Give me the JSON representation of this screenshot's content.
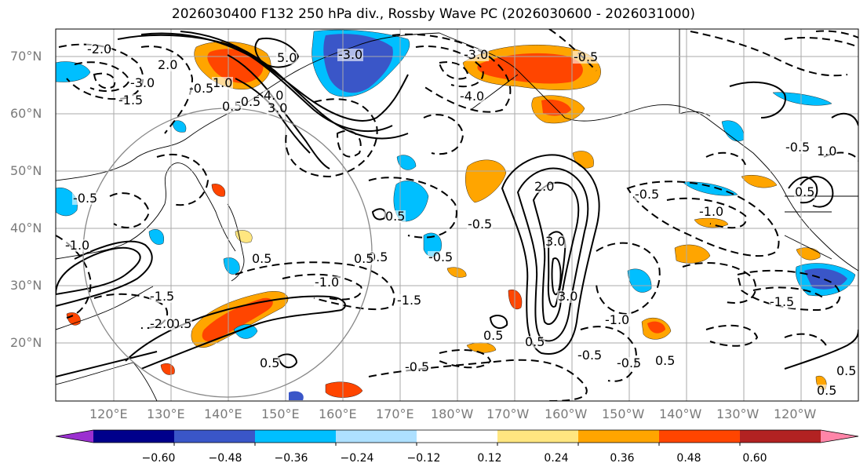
{
  "title": "2026030400 F132 250 hPa div., Rossby Wave PC (2026030600 - 2026031000)",
  "lat_labels": [
    "70°N",
    "60°N",
    "50°N",
    "40°N",
    "30°N",
    "20°N"
  ],
  "lon_labels": [
    "120°E",
    "130°E",
    "140°E",
    "150°E",
    "160°E",
    "170°E",
    "180°W",
    "170°W",
    "160°W",
    "150°W",
    "140°W",
    "130°W",
    "120°W"
  ],
  "colorbar": {
    "ticks": [
      "−0.60",
      "−0.48",
      "−0.36",
      "−0.24",
      "−0.12",
      "0.12",
      "0.24",
      "0.36",
      "0.48",
      "0.60"
    ],
    "colors": [
      "#9b30d0",
      "#00008b",
      "#3a56c8",
      "#00bfff",
      "#aee0ff",
      "#ffffff",
      "#ffe680",
      "#ffa500",
      "#ff4500",
      "#b22222",
      "#ff85a8"
    ]
  },
  "contour_labels": {
    "positive": [
      "5.0",
      "4.0",
      "3.0",
      "2.0",
      "1.0",
      "0.5",
      "0.5",
      "0.5",
      "0.5",
      "0.5",
      "0.5",
      "0.5",
      "0.5",
      "0.5",
      "2.0",
      "3.0",
      "3.0",
      "0.5",
      "0.5",
      "1.0",
      "0.5",
      "0.5"
    ],
    "negative": [
      "-2.0",
      "-3.0",
      "-1.5",
      "-0.5",
      "-0.5",
      "-3.0",
      "-4.0",
      "-0.5",
      "-1.0",
      "-1.5",
      "-1.0",
      "-1.5",
      "-2.0",
      "-0.5",
      "-0.5",
      "-0.5",
      "-1.0",
      "-0.5",
      "-0.5",
      "-1.5",
      "-0.5",
      "-1.0",
      "-0.5",
      "-0.5",
      "-3.0"
    ]
  }
}
